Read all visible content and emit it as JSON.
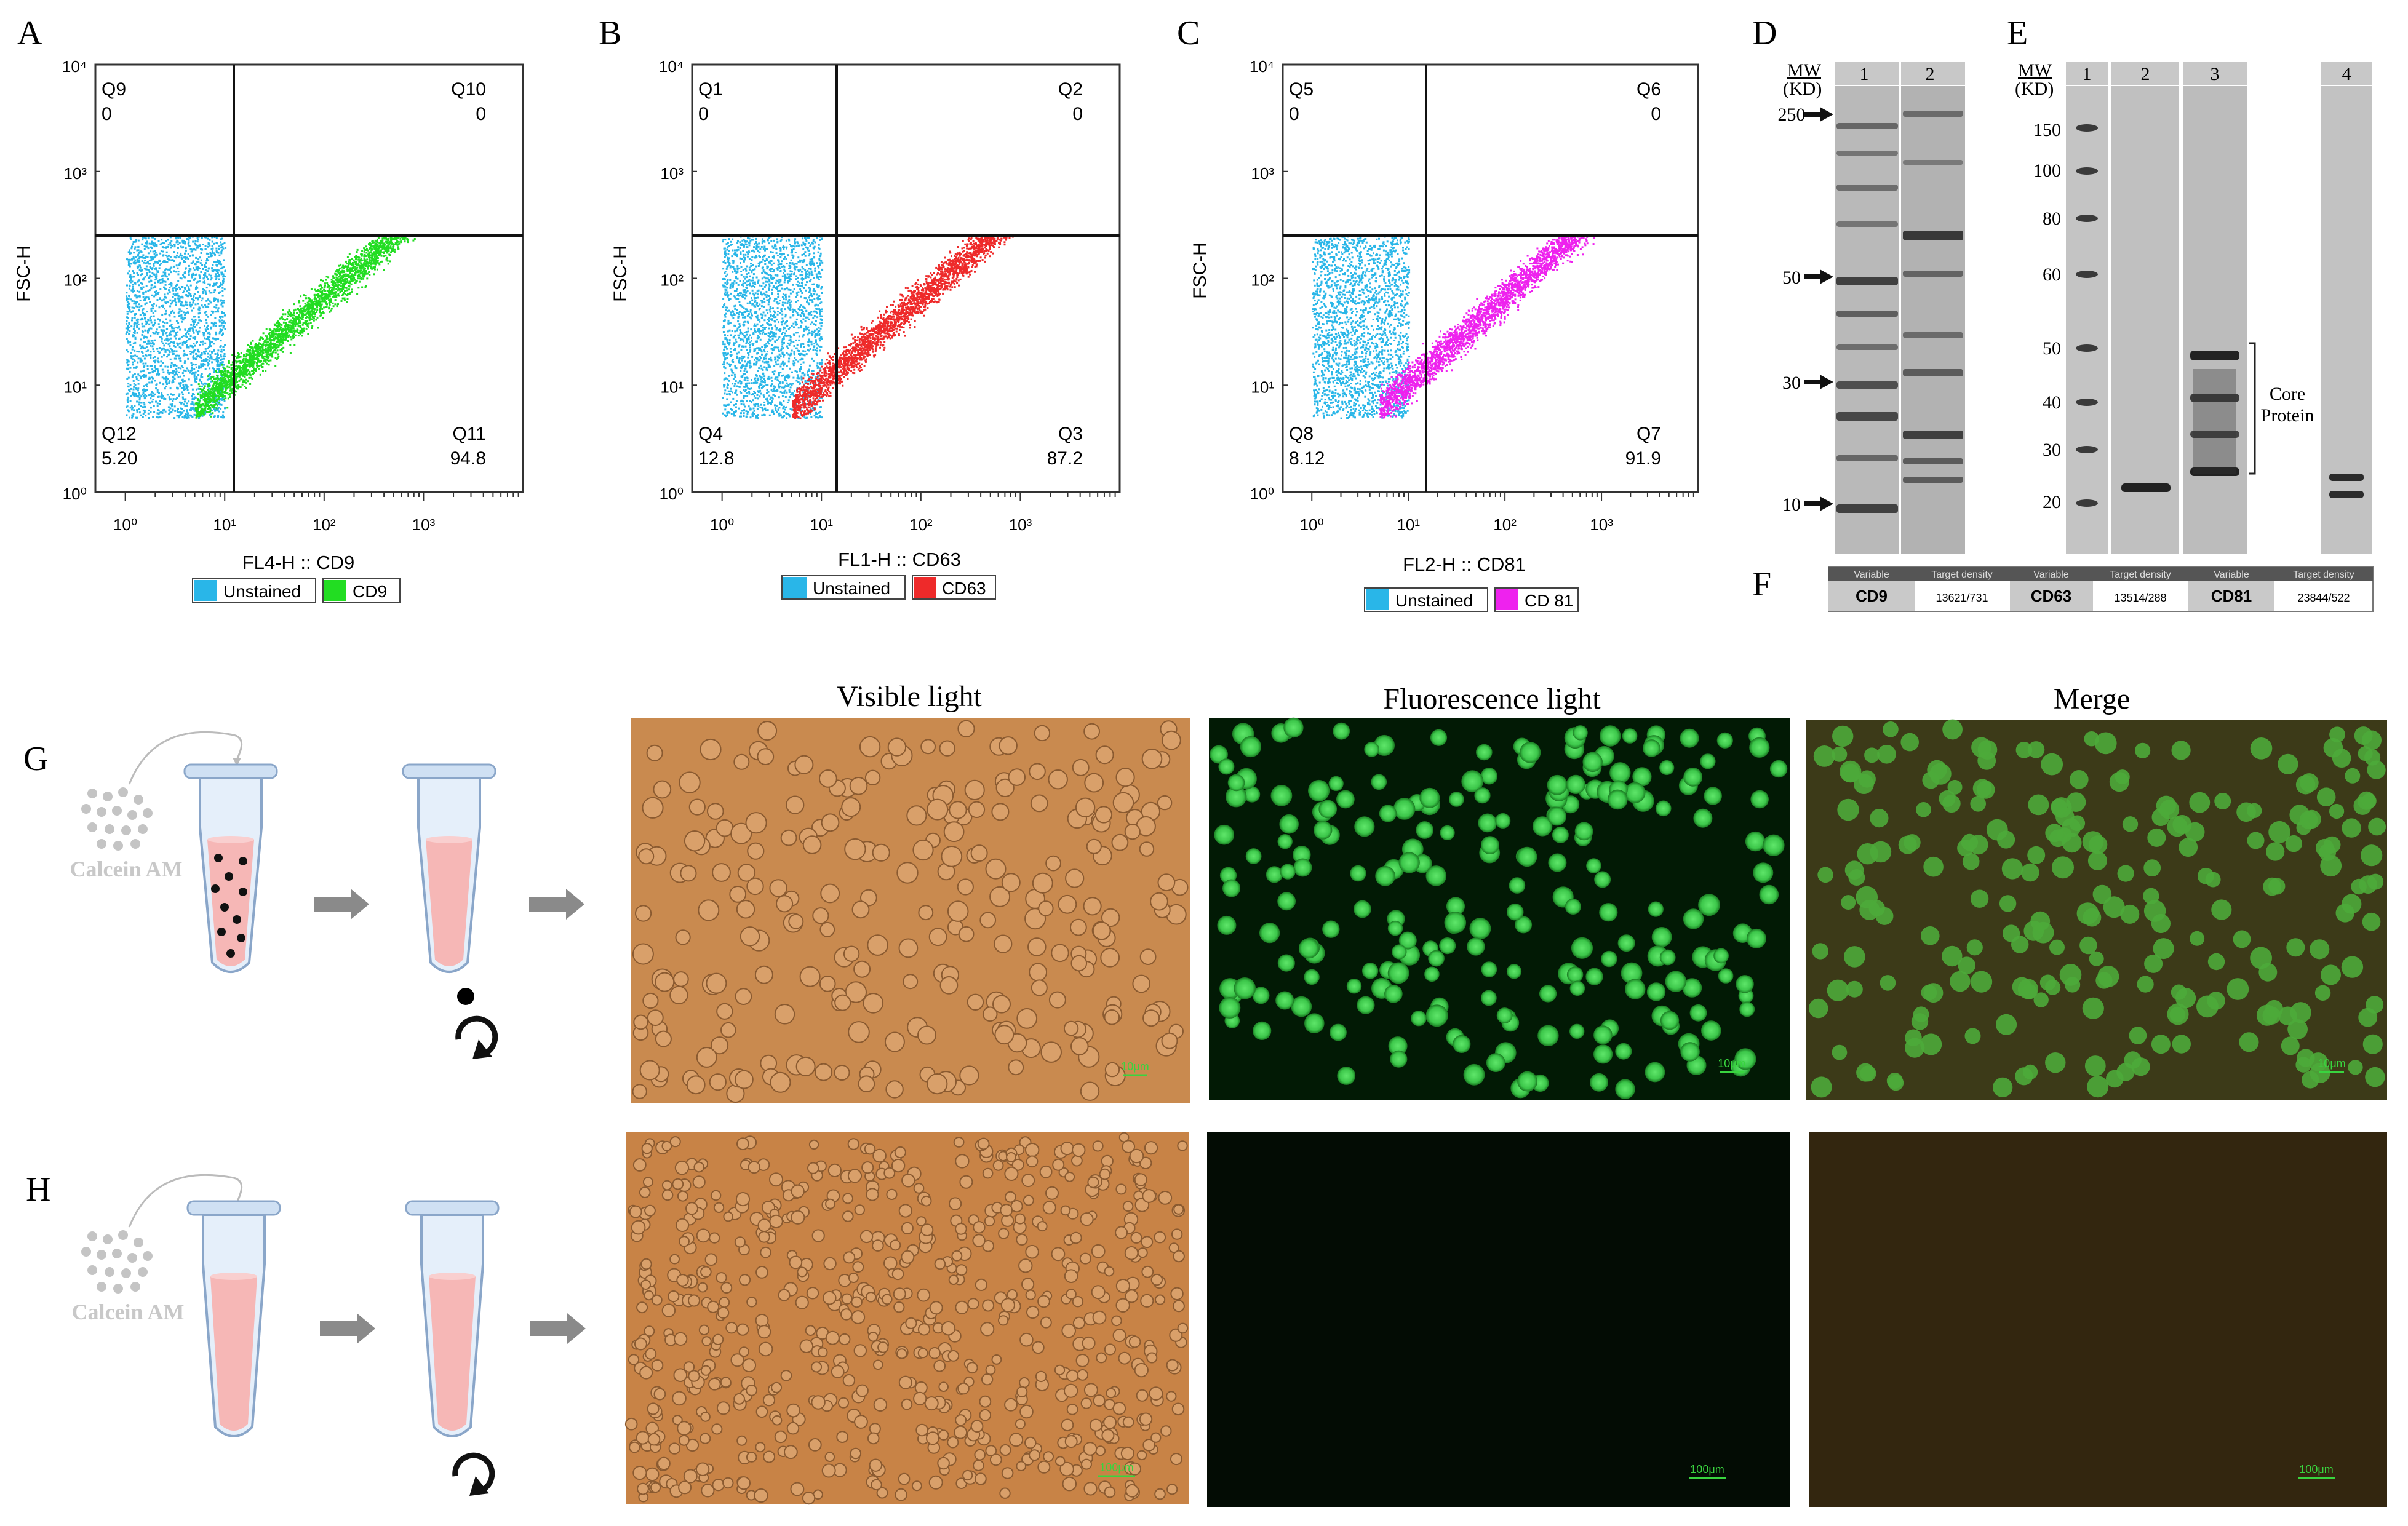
{
  "panels": {
    "A": {
      "letter": "A",
      "quadrants": [
        {
          "name": "Q9",
          "value": "0"
        },
        {
          "name": "Q10",
          "value": "0"
        },
        {
          "name": "Q12",
          "value": "5.20"
        },
        {
          "name": "Q11",
          "value": "94.8"
        }
      ],
      "ylabel": "FSC-H",
      "xlabel": "FL4-H :: CD9",
      "legend": [
        {
          "label": "Unstained",
          "color": "#29b6e8"
        },
        {
          "label": "CD9",
          "color": "#22dd22"
        }
      ]
    },
    "B": {
      "letter": "B",
      "quadrants": [
        {
          "name": "Q1",
          "value": "0"
        },
        {
          "name": "Q2",
          "value": "0"
        },
        {
          "name": "Q4",
          "value": "12.8"
        },
        {
          "name": "Q3",
          "value": "87.2"
        }
      ],
      "ylabel": "FSC-H",
      "xlabel": "FL1-H :: CD63",
      "legend": [
        {
          "label": "Unstained",
          "color": "#29b6e8"
        },
        {
          "label": "CD63",
          "color": "#ee2a2a"
        }
      ]
    },
    "C": {
      "letter": "C",
      "quadrants": [
        {
          "name": "Q5",
          "value": "0"
        },
        {
          "name": "Q6",
          "value": "0"
        },
        {
          "name": "Q8",
          "value": "8.12"
        },
        {
          "name": "Q7",
          "value": "91.9"
        }
      ],
      "ylabel": "FSC-H",
      "xlabel": "FL2-H :: CD81",
      "legend": [
        {
          "label": "Unstained",
          "color": "#29b6e8"
        },
        {
          "label": "CD 81",
          "color": "#ee22ee"
        }
      ]
    },
    "D": {
      "letter": "D",
      "mw_label": [
        "MW",
        "(KD)"
      ],
      "lanes": [
        "1",
        "2"
      ],
      "markers": [
        "250",
        "50",
        "30",
        "10"
      ]
    },
    "E": {
      "letter": "E",
      "mw_label": [
        "MW",
        "(KD)"
      ],
      "lanes": [
        "1",
        "2",
        "3",
        "4"
      ],
      "markers": [
        "150",
        "100",
        "80",
        "60",
        "50",
        "40",
        "30",
        "20"
      ],
      "annotation": [
        "Core",
        "Protein"
      ]
    },
    "F": {
      "letter": "F",
      "table": [
        {
          "variable_header": "Variable",
          "density_header": "Target density",
          "variable": "CD9",
          "density": "13621/731"
        },
        {
          "variable_header": "Variable",
          "density_header": "Target density",
          "variable": "CD63",
          "density": "13514/288"
        },
        {
          "variable_header": "Variable",
          "density_header": "Target density",
          "variable": "CD81",
          "density": "23844/522"
        }
      ]
    },
    "G": {
      "letter": "G",
      "dye": "Calcein AM",
      "scale": "10μm"
    },
    "H": {
      "letter": "H",
      "dye": "Calcein AM",
      "scale": "100μm"
    }
  },
  "axis_ticks": {
    "y": [
      "10⁰",
      "10¹",
      "10²",
      "10³",
      "10⁴"
    ],
    "x": [
      "10⁰",
      "10¹",
      "10²",
      "10³"
    ]
  },
  "micro_headers": [
    "Visible light",
    "Fluorescence light",
    "Merge"
  ],
  "chart_data": [
    {
      "type": "scatter",
      "panel": "A",
      "xlabel": "FL4-H :: CD9",
      "ylabel": "FSC-H",
      "xscale": "log",
      "yscale": "log",
      "xlim": [
        0.5,
        10000
      ],
      "ylim": [
        1,
        10000
      ],
      "gate": {
        "x": 8,
        "y": 250
      },
      "quadrant_percent": {
        "Q9": 0,
        "Q10": 0,
        "Q11": 94.8,
        "Q12": 5.2
      },
      "series": [
        {
          "name": "Unstained",
          "color": "#29b6e8",
          "x_range": [
            1,
            10
          ],
          "y_range": [
            5,
            250
          ]
        },
        {
          "name": "CD9",
          "color": "#22dd22",
          "x_range": [
            5,
            1500
          ],
          "y_range": [
            5,
            250
          ]
        }
      ]
    },
    {
      "type": "scatter",
      "panel": "B",
      "xlabel": "FL1-H :: CD63",
      "ylabel": "FSC-H",
      "xscale": "log",
      "yscale": "log",
      "xlim": [
        0.5,
        10000
      ],
      "ylim": [
        1,
        10000
      ],
      "gate": {
        "x": 10,
        "y": 250
      },
      "quadrant_percent": {
        "Q1": 0,
        "Q2": 0,
        "Q3": 87.2,
        "Q4": 12.8
      },
      "series": [
        {
          "name": "Unstained",
          "color": "#29b6e8",
          "x_range": [
            1,
            10
          ],
          "y_range": [
            5,
            250
          ]
        },
        {
          "name": "CD63",
          "color": "#ee2a2a",
          "x_range": [
            5,
            1500
          ],
          "y_range": [
            5,
            250
          ]
        }
      ]
    },
    {
      "type": "scatter",
      "panel": "C",
      "xlabel": "FL2-H :: CD81",
      "ylabel": "FSC-H",
      "xscale": "log",
      "yscale": "log",
      "xlim": [
        0.5,
        10000
      ],
      "ylim": [
        1,
        10000
      ],
      "gate": {
        "x": 12,
        "y": 250
      },
      "quadrant_percent": {
        "Q5": 0,
        "Q6": 0,
        "Q7": 91.9,
        "Q8": 8.12
      },
      "series": [
        {
          "name": "Unstained",
          "color": "#29b6e8",
          "x_range": [
            1,
            10
          ],
          "y_range": [
            5,
            250
          ]
        },
        {
          "name": "CD 81",
          "color": "#ee22ee",
          "x_range": [
            5,
            1500
          ],
          "y_range": [
            5,
            250
          ]
        }
      ]
    }
  ]
}
